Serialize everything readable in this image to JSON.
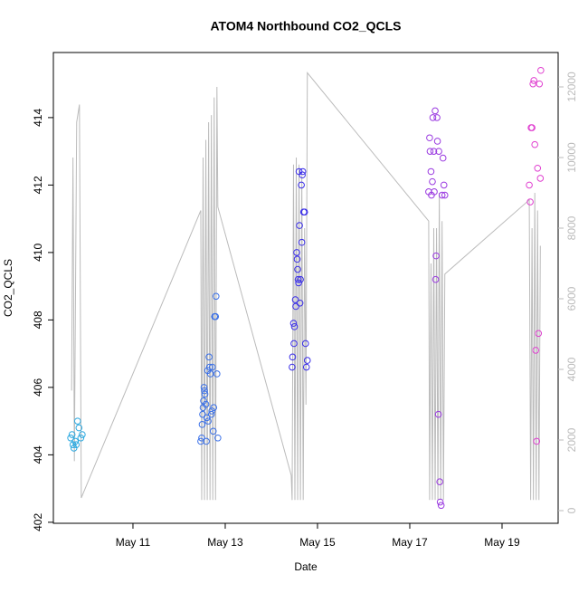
{
  "chart_data": {
    "type": "scatter",
    "title": "ATOM4 Northbound CO2_QCLS",
    "xlabel": "Date",
    "ylabel": "CO2_QCLS",
    "xlim": [
      9.275,
      20.216
    ],
    "xticks": [
      {
        "value": 11,
        "label": "May 11"
      },
      {
        "value": 13,
        "label": "May 13"
      },
      {
        "value": 15,
        "label": "May 15"
      },
      {
        "value": 17,
        "label": "May 17"
      },
      {
        "value": 19,
        "label": "May 19"
      }
    ],
    "ylim": [
      401.97,
      415.93
    ],
    "yticks": [
      402,
      404,
      406,
      408,
      410,
      412,
      414
    ],
    "y2lim": [
      -359,
      12974
    ],
    "y2ticks": [
      0,
      2000,
      4000,
      6000,
      8000,
      10000,
      12000
    ],
    "y2color": "#bbbbbb",
    "series": [
      {
        "color": "#bbbbbb",
        "axis": "y2",
        "x": [
          9.67,
          9.7,
          9.73,
          9.78,
          9.84,
          9.88,
          12.47,
          12.49,
          12.52,
          12.55,
          12.58,
          12.61,
          12.64,
          12.67,
          12.7,
          12.73,
          12.76,
          12.79,
          12.82,
          12.84,
          14.43,
          14.45,
          14.48,
          14.51,
          14.54,
          14.57,
          14.6,
          14.63,
          14.66,
          14.69,
          14.72,
          14.75,
          14.78,
          17.41,
          17.43,
          17.46,
          17.49,
          17.52,
          17.55,
          17.58,
          17.61,
          17.64,
          17.67,
          17.7,
          17.73,
          17.76,
          19.59,
          19.62,
          19.65,
          19.68,
          19.71,
          19.74,
          19.77,
          19.8,
          19.83
        ],
        "values": [
          3400,
          10000,
          1400,
          11000,
          11500,
          360,
          8500,
          300,
          10000,
          300,
          10500,
          300,
          11000,
          300,
          11200,
          300,
          11700,
          300,
          12000,
          8600,
          1000,
          300,
          9800,
          300,
          10000,
          300,
          9800,
          300,
          9500,
          300,
          8000,
          3000,
          12400,
          8200,
          300,
          7000,
          300,
          8000,
          300,
          8000,
          300,
          9000,
          300,
          8200,
          300,
          6700,
          8800,
          300,
          8000,
          300,
          9000,
          300,
          8500,
          300,
          7500
        ]
      },
      {
        "color": "#2aa8e0",
        "x": [
          9.65,
          9.68,
          9.7,
          9.72,
          9.75,
          9.77,
          9.8,
          9.83,
          9.87,
          9.9
        ],
        "values": [
          404.5,
          404.6,
          404.3,
          404.2,
          404.4,
          404.3,
          405.0,
          404.8,
          404.5,
          404.6
        ]
      },
      {
        "color": "#3a70e8",
        "x": [
          12.47,
          12.49,
          12.5,
          12.51,
          12.52,
          12.53,
          12.54,
          12.55,
          12.56,
          12.58,
          12.59,
          12.6,
          12.62,
          12.63,
          12.65,
          12.66,
          12.68,
          12.7,
          12.71,
          12.72,
          12.74,
          12.75,
          12.77,
          12.79,
          12.8,
          12.82,
          12.84
        ],
        "values": [
          404.4,
          404.5,
          404.9,
          405.2,
          405.4,
          405.6,
          406.0,
          405.9,
          405.8,
          405.5,
          404.4,
          405.1,
          406.5,
          405.0,
          406.9,
          406.6,
          406.4,
          405.2,
          405.3,
          406.6,
          404.7,
          405.4,
          408.1,
          408.1,
          408.7,
          406.4,
          404.5
        ]
      },
      {
        "color": "#3a2ee8",
        "x": [
          14.45,
          14.46,
          14.48,
          14.49,
          14.5,
          14.52,
          14.53,
          14.55,
          14.56,
          14.57,
          14.58,
          14.59,
          14.6,
          14.61,
          14.62,
          14.63,
          14.65,
          14.66,
          14.67,
          14.68,
          14.7,
          14.72,
          14.74,
          14.76,
          14.78
        ],
        "values": [
          406.6,
          406.9,
          407.9,
          407.3,
          407.8,
          408.6,
          408.4,
          410.0,
          409.8,
          409.5,
          409.2,
          409.1,
          412.4,
          410.8,
          408.5,
          409.2,
          412.0,
          410.3,
          412.3,
          412.4,
          411.2,
          411.2,
          407.3,
          406.6,
          406.8
        ]
      },
      {
        "color": "#9a3ae0",
        "x": [
          17.41,
          17.43,
          17.44,
          17.46,
          17.47,
          17.49,
          17.5,
          17.52,
          17.53,
          17.55,
          17.56,
          17.57,
          17.59,
          17.6,
          17.62,
          17.63,
          17.65,
          17.66,
          17.68,
          17.7,
          17.72,
          17.74,
          17.76
        ],
        "values": [
          411.8,
          413.4,
          413.0,
          412.4,
          411.7,
          412.1,
          414.0,
          413.0,
          411.8,
          414.2,
          409.2,
          409.9,
          414.0,
          413.3,
          405.2,
          413.0,
          403.2,
          402.6,
          402.5,
          411.7,
          412.8,
          412.0,
          411.7
        ]
      },
      {
        "color": "#e040d0",
        "x": [
          19.59,
          19.61,
          19.63,
          19.65,
          19.67,
          19.69,
          19.71,
          19.73,
          19.75,
          19.77,
          19.79,
          19.81,
          19.83,
          19.84
        ],
        "values": [
          412.0,
          411.5,
          413.7,
          413.7,
          415.0,
          415.1,
          413.2,
          407.1,
          404.4,
          412.5,
          407.6,
          415.0,
          412.2,
          415.4
        ]
      }
    ]
  }
}
